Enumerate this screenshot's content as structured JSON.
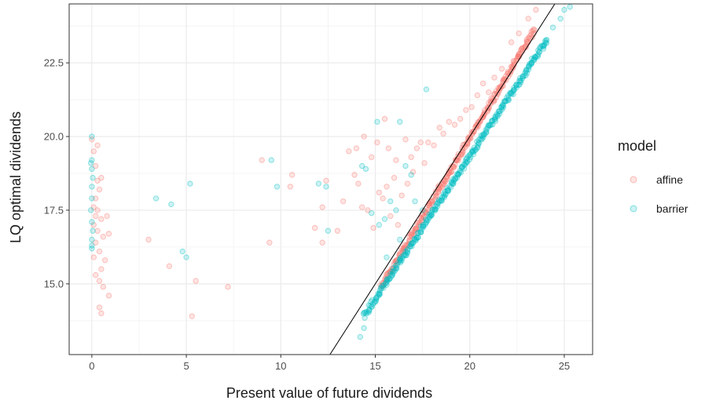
{
  "chart_data": {
    "type": "scatter",
    "title": "",
    "xlabel": "Present value of future dividends",
    "ylabel": "LQ optimal dividends",
    "xlim": [
      -1.2,
      26.5
    ],
    "ylim": [
      12.6,
      24.5
    ],
    "x_ticks": [
      0,
      5,
      10,
      15,
      20,
      25
    ],
    "x_tick_labels": [
      "0",
      "5",
      "10",
      "15",
      "20",
      "25"
    ],
    "y_ticks": [
      15.0,
      17.5,
      20.0,
      22.5
    ],
    "y_tick_labels": [
      "15.0",
      "17.5",
      "20.0",
      "22.5"
    ],
    "grid": true,
    "legend": {
      "title": "model",
      "position": "right",
      "entries": [
        "affine",
        "barrier"
      ]
    },
    "reference_line": {
      "slope": 1,
      "intercept": 0,
      "color": "#000000"
    },
    "series": [
      {
        "name": "affine",
        "color": "#f8766d",
        "opacity": 0.2,
        "scattered": [
          [
            0.0,
            19.9
          ],
          [
            0.1,
            19.5
          ],
          [
            0.2,
            19.0
          ],
          [
            0.3,
            18.5
          ],
          [
            0.4,
            18.2
          ],
          [
            0.2,
            17.9
          ],
          [
            0.1,
            17.6
          ],
          [
            0.3,
            17.5
          ],
          [
            0.2,
            17.3
          ],
          [
            0.5,
            17.2
          ],
          [
            0.1,
            17.0
          ],
          [
            0.3,
            16.8
          ],
          [
            0.6,
            16.6
          ],
          [
            0.9,
            16.7
          ],
          [
            0.2,
            16.4
          ],
          [
            0.4,
            16.1
          ],
          [
            0.1,
            15.9
          ],
          [
            0.7,
            15.8
          ],
          [
            0.5,
            15.5
          ],
          [
            0.2,
            15.3
          ],
          [
            0.4,
            15.1
          ],
          [
            0.6,
            14.9
          ],
          [
            0.9,
            14.6
          ],
          [
            0.4,
            14.2
          ],
          [
            0.5,
            14.0
          ],
          [
            0.8,
            17.3
          ],
          [
            0.5,
            18.6
          ],
          [
            0.3,
            19.7
          ],
          [
            3.0,
            16.5
          ],
          [
            4.1,
            15.6
          ],
          [
            5.3,
            13.9
          ],
          [
            5.5,
            15.1
          ],
          [
            7.2,
            14.9
          ],
          [
            9.0,
            19.2
          ],
          [
            9.4,
            16.4
          ],
          [
            10.5,
            18.3
          ],
          [
            10.6,
            18.7
          ],
          [
            11.8,
            16.9
          ],
          [
            12.2,
            17.6
          ],
          [
            12.2,
            16.4
          ],
          [
            12.4,
            18.5
          ],
          [
            13.0,
            16.8
          ],
          [
            13.3,
            17.8
          ],
          [
            13.6,
            19.5
          ],
          [
            13.9,
            18.7
          ],
          [
            14.0,
            19.6
          ],
          [
            14.1,
            18.4
          ],
          [
            14.4,
            20.0
          ],
          [
            14.3,
            17.6
          ],
          [
            14.6,
            17.5
          ],
          [
            14.8,
            19.3
          ],
          [
            14.9,
            16.9
          ],
          [
            15.1,
            19.8
          ],
          [
            15.2,
            18.1
          ],
          [
            15.4,
            17.9
          ],
          [
            15.5,
            20.6
          ],
          [
            15.6,
            18.3
          ],
          [
            15.7,
            19.6
          ],
          [
            15.8,
            17.3
          ],
          [
            16.0,
            18.6
          ],
          [
            16.1,
            19.2
          ],
          [
            16.2,
            17.0
          ],
          [
            16.4,
            18.0
          ],
          [
            16.6,
            19.9
          ],
          [
            16.7,
            18.4
          ],
          [
            16.9,
            19.3
          ],
          [
            17.0,
            18.8
          ],
          [
            17.2,
            19.6
          ],
          [
            17.4,
            19.8
          ],
          [
            17.6,
            19.1
          ],
          [
            17.8,
            19.8
          ],
          [
            18.1,
            19.7
          ],
          [
            18.4,
            20.3
          ],
          [
            18.6,
            20.1
          ],
          [
            18.9,
            20.5
          ],
          [
            19.2,
            20.4
          ],
          [
            19.5,
            20.6
          ],
          [
            19.8,
            20.9
          ],
          [
            20.1,
            21.0
          ],
          [
            20.4,
            21.4
          ],
          [
            20.7,
            21.8
          ],
          [
            21.0,
            21.5
          ],
          [
            21.3,
            22.0
          ],
          [
            21.7,
            22.3
          ],
          [
            22.2,
            23.2
          ],
          [
            22.6,
            23.5
          ],
          [
            23.1,
            24.0
          ],
          [
            23.5,
            24.3
          ]
        ],
        "band": {
          "x_start": 15.3,
          "x_end": 23.4,
          "y_start": 14.9,
          "y_end": 23.6,
          "count": 280
        }
      },
      {
        "name": "barrier",
        "color": "#00bfc4",
        "opacity": 0.2,
        "scattered": [
          [
            0.0,
            20.0
          ],
          [
            0.0,
            19.2
          ],
          [
            -0.05,
            19.1
          ],
          [
            0.0,
            18.9
          ],
          [
            0.05,
            18.6
          ],
          [
            0.0,
            18.3
          ],
          [
            0.0,
            17.9
          ],
          [
            -0.05,
            17.5
          ],
          [
            0.0,
            17.1
          ],
          [
            0.05,
            16.8
          ],
          [
            0.0,
            16.5
          ],
          [
            0.0,
            16.3
          ],
          [
            0.0,
            16.2
          ],
          [
            3.4,
            17.9
          ],
          [
            4.2,
            17.7
          ],
          [
            4.8,
            16.1
          ],
          [
            5.0,
            15.9
          ],
          [
            5.2,
            18.4
          ],
          [
            9.5,
            19.2
          ],
          [
            9.8,
            18.3
          ],
          [
            12.0,
            18.4
          ],
          [
            12.4,
            18.3
          ],
          [
            12.5,
            16.8
          ],
          [
            14.3,
            19.0
          ],
          [
            14.5,
            18.9
          ],
          [
            14.8,
            17.4
          ],
          [
            15.2,
            17.0
          ],
          [
            15.5,
            17.2
          ],
          [
            15.6,
            15.9
          ],
          [
            15.8,
            17.8
          ],
          [
            16.1,
            17.5
          ],
          [
            16.3,
            16.5
          ],
          [
            16.6,
            19.0
          ],
          [
            16.9,
            18.7
          ],
          [
            17.1,
            17.8
          ],
          [
            17.5,
            17.5
          ],
          [
            17.7,
            21.6
          ],
          [
            16.3,
            20.5
          ],
          [
            15.1,
            20.5
          ],
          [
            14.2,
            13.2
          ],
          [
            14.4,
            13.5
          ],
          [
            24.8,
            24.0
          ],
          [
            25.0,
            24.3
          ],
          [
            25.3,
            24.4
          ],
          [
            24.4,
            23.7
          ]
        ],
        "band": {
          "x_start": 14.4,
          "x_end": 24.1,
          "y_start": 13.9,
          "y_end": 23.3,
          "count": 320
        }
      }
    ]
  }
}
